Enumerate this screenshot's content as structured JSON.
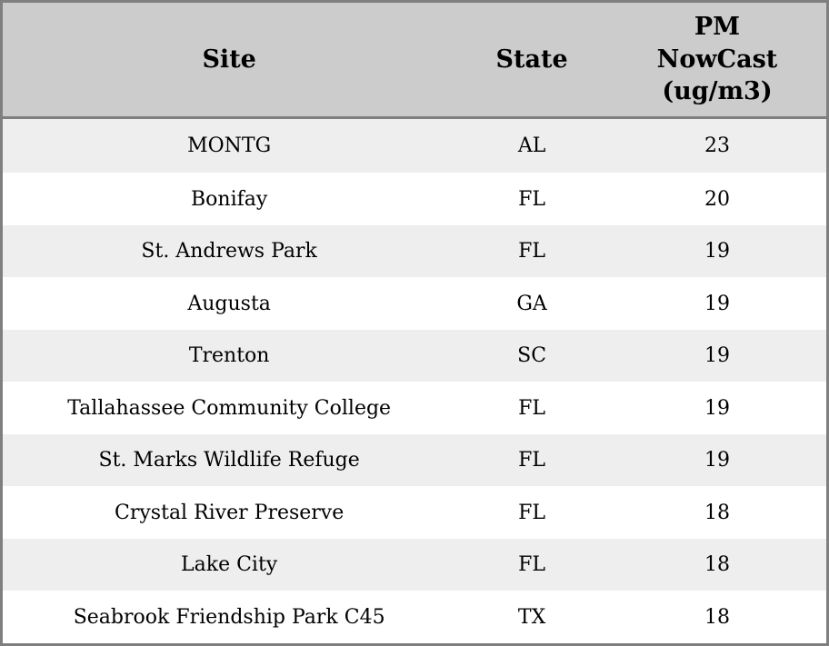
{
  "chart_data": {
    "type": "table",
    "columns": [
      "Site",
      "State",
      "PM\nNowCast\n(ug/m3)"
    ],
    "rows": [
      [
        "MONTG",
        "AL",
        23
      ],
      [
        "Bonifay",
        "FL",
        20
      ],
      [
        "St. Andrews Park",
        "FL",
        19
      ],
      [
        "Augusta",
        "GA",
        19
      ],
      [
        "Trenton",
        "SC",
        19
      ],
      [
        "Tallahassee Community College",
        "FL",
        19
      ],
      [
        "St. Marks Wildlife Refuge",
        "FL",
        19
      ],
      [
        "Crystal River Preserve",
        "FL",
        18
      ],
      [
        "Lake City",
        "FL",
        18
      ],
      [
        "Seabrook Friendship Park C45",
        "TX",
        18
      ]
    ],
    "layout": {
      "header_lines_in_pm_column": 3,
      "alternating_rows": true,
      "grid": "outer-frame-and-header-separator-only"
    },
    "colors": {
      "header_bg": "#cccccc",
      "row_alt_bg": "#eeeeee",
      "row_bg": "#ffffff",
      "border": "#7f7f7f",
      "text": "#000000"
    }
  }
}
